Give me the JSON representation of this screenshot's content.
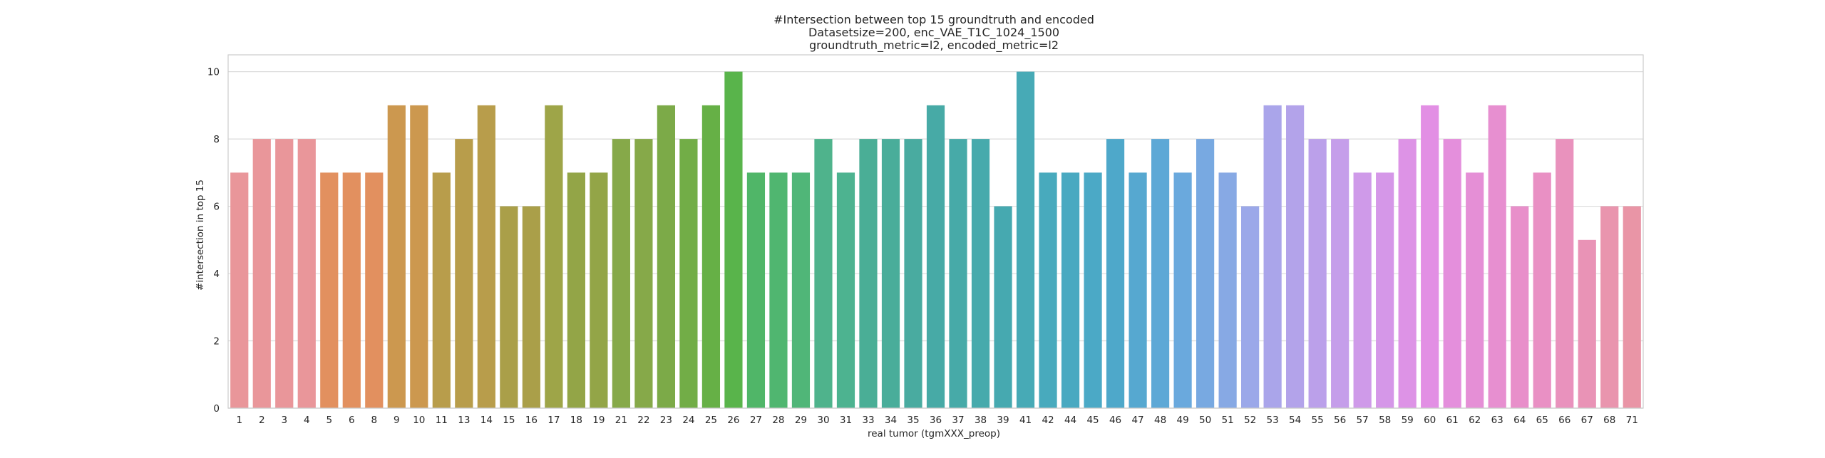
{
  "chart_data": {
    "type": "bar",
    "title_lines": [
      "#Intersection between top 15 groundtruth and encoded",
      "Datasetsize=200, enc_VAE_T1C_1024_1500",
      "groundtruth_metric=l2, encoded_metric=l2"
    ],
    "xlabel": "real tumor (tgmXXX_preop)",
    "ylabel": "#intersection in top 15",
    "ylim": [
      0,
      10.5
    ],
    "yticks": [
      0,
      2,
      4,
      6,
      8,
      10
    ],
    "grid": true,
    "categories": [
      "1",
      "2",
      "3",
      "4",
      "5",
      "6",
      "8",
      "9",
      "10",
      "11",
      "13",
      "14",
      "15",
      "16",
      "17",
      "18",
      "19",
      "21",
      "22",
      "23",
      "24",
      "25",
      "26",
      "27",
      "28",
      "29",
      "30",
      "31",
      "33",
      "34",
      "35",
      "36",
      "37",
      "38",
      "39",
      "41",
      "42",
      "44",
      "45",
      "46",
      "47",
      "48",
      "49",
      "50",
      "51",
      "52",
      "53",
      "54",
      "55",
      "56",
      "57",
      "58",
      "59",
      "60",
      "61",
      "62",
      "63",
      "64",
      "65",
      "66",
      "67",
      "68",
      "71"
    ],
    "values": [
      7,
      8,
      8,
      8,
      7,
      7,
      7,
      9,
      9,
      7,
      8,
      9,
      6,
      6,
      9,
      7,
      7,
      8,
      8,
      9,
      8,
      9,
      10,
      7,
      7,
      7,
      8,
      7,
      8,
      8,
      8,
      9,
      8,
      8,
      6,
      10,
      7,
      7,
      7,
      8,
      7,
      8,
      7,
      8,
      7,
      6,
      9,
      9,
      8,
      8,
      7,
      7,
      8,
      9,
      8,
      7,
      9,
      6,
      7,
      8,
      5,
      6,
      6
    ],
    "colors": [
      "#e9969a",
      "#e9969a",
      "#e9969a",
      "#e9969a",
      "#e2905f",
      "#e2905f",
      "#e2905f",
      "#cc984f",
      "#cc984f",
      "#b89d4b",
      "#b89d4b",
      "#b89d4b",
      "#aa9f49",
      "#aa9f49",
      "#9ea548",
      "#93a547",
      "#93a547",
      "#86a949",
      "#86a949",
      "#7caa48",
      "#72ad47",
      "#66b046",
      "#59b44b",
      "#50b668",
      "#50b670",
      "#50b678",
      "#4fb38c",
      "#4db390",
      "#4aae96",
      "#49ad9a",
      "#49aba0",
      "#47aaa6",
      "#47aaa8",
      "#47aaac",
      "#46a9b0",
      "#47aab6",
      "#48aabd",
      "#49a9c1",
      "#4ba9c6",
      "#4ea8ca",
      "#56a8d0",
      "#5da8d6",
      "#6aa9dd",
      "#78a9e1",
      "#87a9e4",
      "#9ba8e9",
      "#aaa5ea",
      "#b3a3ea",
      "#bba0ea",
      "#c59eea",
      "#cf9ae9",
      "#d597e8",
      "#dd93e6",
      "#e28fe4",
      "#e48fdc",
      "#e58fd6",
      "#e78fd0",
      "#e88fca",
      "#e990c4",
      "#e992bd",
      "#e993b6",
      "#e995ae",
      "#e995a6"
    ]
  }
}
